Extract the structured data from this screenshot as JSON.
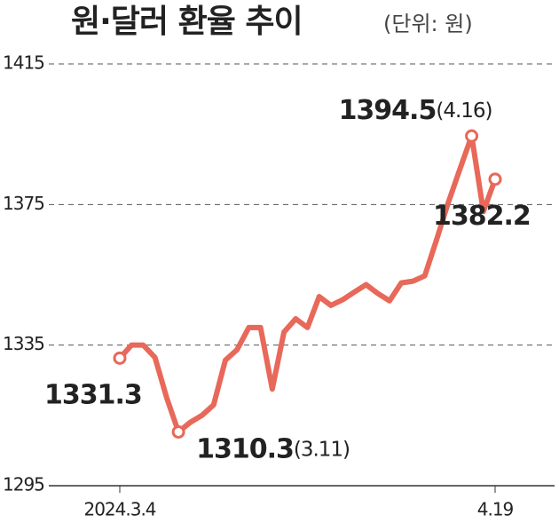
{
  "chart_data": {
    "type": "line",
    "title": "원·달러 환율 추이",
    "subtitle": "(단위: 원)",
    "categories": [
      "2024.3.4",
      null,
      null,
      null,
      null,
      null,
      null,
      null,
      null,
      null,
      null,
      null,
      null,
      null,
      null,
      null,
      null,
      null,
      null,
      null,
      null,
      null,
      null,
      null,
      null,
      null,
      null,
      null,
      null,
      null,
      null,
      null,
      "4.19"
    ],
    "series": [
      {
        "name": "원·달러 환율",
        "color": "#e8685a",
        "values": [
          1331.3,
          1335,
          1335,
          1331.5,
          1320,
          1310.3,
          1313,
          1315,
          1318,
          1330.7,
          1333.7,
          1340,
          1340,
          1322.5,
          1338.7,
          1342.5,
          1340,
          1348.8,
          1346.3,
          1347.9,
          1350.1,
          1352.2,
          1349.7,
          1347.6,
          1352.7,
          1353.2,
          1354.7,
          1364.9,
          1375.5,
          1385.1,
          1394.5,
          1373,
          1382.2
        ],
        "value_labels": [
          "1331.3",
          null,
          null,
          null,
          null,
          "1310.3",
          null,
          null,
          null,
          null,
          null,
          null,
          null,
          null,
          null,
          null,
          null,
          null,
          null,
          null,
          null,
          null,
          null,
          null,
          null,
          null,
          null,
          null,
          null,
          null,
          "1394.5",
          null,
          "1382.2"
        ],
        "label_dates": [
          null,
          null,
          null,
          null,
          null,
          "(3.11)",
          null,
          null,
          null,
          null,
          null,
          null,
          null,
          null,
          null,
          null,
          null,
          null,
          null,
          null,
          null,
          null,
          null,
          null,
          null,
          null,
          null,
          null,
          null,
          null,
          "(4.16)",
          null,
          null
        ]
      }
    ],
    "ylim": [
      1295,
      1415
    ],
    "yticks": [
      1295,
      1335,
      1375,
      1415
    ],
    "grid": true
  }
}
